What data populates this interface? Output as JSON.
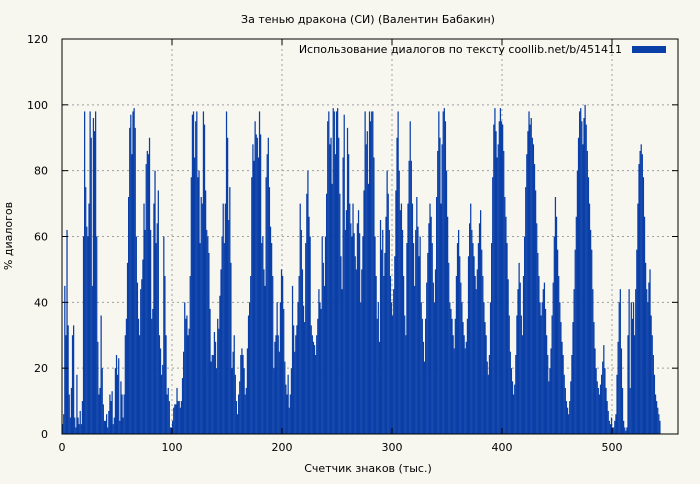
{
  "chart_data": {
    "type": "bar",
    "title": "За тенью дракона (СИ) (Валентин Бабакин)",
    "xlabel": "Счетчик знаков (тыс.)",
    "ylabel": "% диалогов",
    "xlim": [
      0,
      560
    ],
    "ylim": [
      0,
      120
    ],
    "xticks": [
      0,
      100,
      200,
      300,
      400,
      500
    ],
    "yticks": [
      0,
      20,
      40,
      60,
      80,
      100,
      120
    ],
    "grid": true,
    "legend_position": "top-right",
    "series": [
      {
        "name": "Использование диалогов по тексту  coollib.net/b/451411",
        "color": "#0a3fa8",
        "x_step": 1,
        "values": [
          3,
          6,
          45,
          30,
          62,
          33,
          12,
          5,
          14,
          30,
          33,
          5,
          2,
          18,
          5,
          3,
          7,
          3,
          10,
          60,
          98,
          75,
          63,
          60,
          70,
          98,
          90,
          45,
          96,
          92,
          98,
          60,
          28,
          12,
          14,
          36,
          20,
          9,
          4,
          4,
          6,
          2,
          7,
          12,
          10,
          13,
          3,
          5,
          20,
          24,
          18,
          23,
          4,
          16,
          12,
          5,
          12,
          30,
          35,
          52,
          72,
          93,
          97,
          85,
          98,
          99,
          93,
          60,
          46,
          35,
          30,
          44,
          47,
          53,
          70,
          62,
          82,
          86,
          85,
          90,
          62,
          35,
          38,
          70,
          80,
          58,
          64,
          74,
          30,
          26,
          18,
          21,
          60,
          48,
          30,
          12,
          14,
          10,
          2,
          2,
          4,
          8,
          9,
          9,
          14,
          10,
          10,
          8,
          10,
          17,
          25,
          40,
          35,
          36,
          30,
          32,
          48,
          78,
          97,
          98,
          84,
          95,
          98,
          78,
          80,
          58,
          72,
          70,
          98,
          94,
          74,
          62,
          60,
          55,
          38,
          22,
          24,
          24,
          31,
          28,
          20,
          35,
          32,
          42,
          50,
          60,
          70,
          58,
          70,
          98,
          90,
          65,
          75,
          52,
          20,
          25,
          30,
          18,
          10,
          6,
          12,
          16,
          24,
          26,
          24,
          20,
          12,
          14,
          26,
          36,
          40,
          48,
          78,
          88,
          83,
          95,
          91,
          90,
          84,
          98,
          91,
          58,
          60,
          50,
          45,
          78,
          85,
          90,
          75,
          63,
          58,
          48,
          20,
          28,
          30,
          40,
          30,
          25,
          40,
          50,
          48,
          38,
          22,
          15,
          12,
          18,
          8,
          12,
          20,
          45,
          33,
          25,
          30,
          33,
          40,
          48,
          70,
          62,
          50,
          39,
          34,
          58,
          73,
          80,
          66,
          60,
          33,
          30,
          28,
          27,
          24,
          30,
          35,
          44,
          40,
          38,
          60,
          52,
          45,
          60,
          73,
          95,
          98,
          88,
          90,
          76,
          99,
          98,
          85,
          98,
          99,
          90,
          73,
          54,
          44,
          84,
          97,
          62,
          68,
          93,
          85,
          70,
          64,
          60,
          70,
          61,
          54,
          50,
          64,
          68,
          61,
          40,
          50,
          60,
          74,
          98,
          88,
          92,
          76,
          98,
          95,
          98,
          98,
          84,
          60,
          48,
          35,
          40,
          28,
          65,
          56,
          62,
          48,
          55,
          66,
          80,
          73,
          62,
          48,
          40,
          36,
          44,
          54,
          74,
          90,
          98,
          80,
          68,
          70,
          62,
          48,
          36,
          30,
          58,
          70,
          83,
          95,
          83,
          70,
          58,
          45,
          62,
          72,
          63,
          54,
          60,
          40,
          35,
          28,
          22,
          35,
          46,
          55,
          64,
          70,
          66,
          58,
          46,
          40,
          50,
          72,
          86,
          98,
          90,
          70,
          88,
          98,
          99,
          95,
          80,
          66,
          52,
          40,
          38,
          35,
          30,
          26,
          35,
          48,
          58,
          62,
          54,
          46,
          40,
          34,
          30,
          26,
          28,
          35,
          54,
          64,
          70,
          62,
          58,
          54,
          48,
          44,
          50,
          58,
          64,
          68,
          56,
          48,
          40,
          34,
          30,
          22,
          18,
          24,
          40,
          58,
          78,
          94,
          99,
          92,
          84,
          88,
          95,
          99,
          95,
          94,
          86,
          72,
          66,
          58,
          47,
          36,
          25,
          20,
          16,
          12,
          15,
          24,
          36,
          44,
          52,
          46,
          36,
          30,
          48,
          60,
          75,
          85,
          92,
          98,
          94,
          96,
          90,
          88,
          82,
          74,
          64,
          55,
          48,
          40,
          36,
          40,
          44,
          46,
          38,
          30,
          24,
          16,
          20,
          26,
          36,
          46,
          60,
          72,
          66,
          56,
          48,
          40,
          34,
          28,
          24,
          18,
          14,
          10,
          8,
          6,
          10,
          16,
          24,
          34,
          44,
          56,
          66,
          80,
          90,
          98,
          99,
          95,
          88,
          96,
          100,
          94,
          86,
          78,
          70,
          62,
          56,
          44,
          34,
          26,
          20,
          16,
          14,
          12,
          15,
          18,
          22,
          27,
          20,
          14,
          10,
          7,
          4,
          3,
          5,
          2,
          2,
          4,
          6,
          18,
          28,
          40,
          44,
          26,
          14,
          4,
          2,
          1,
          2,
          30,
          44,
          14,
          40,
          35,
          40,
          30,
          44,
          56,
          70,
          82,
          86,
          88,
          85,
          78,
          66,
          52,
          44,
          40,
          46,
          50,
          36,
          30,
          24,
          18,
          12,
          10,
          8,
          6,
          4
        ]
      }
    ]
  }
}
